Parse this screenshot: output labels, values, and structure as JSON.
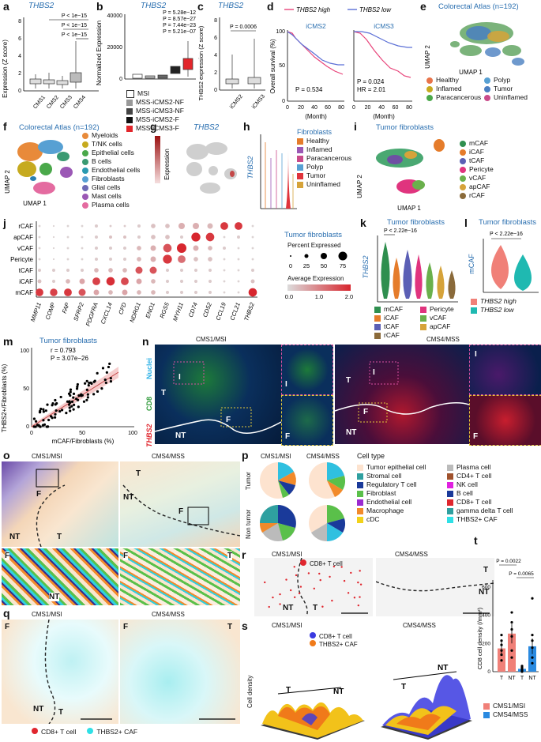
{
  "panels": {
    "a": {
      "label": "a",
      "title": "THBS2",
      "ylabel": "Expression (Z score)",
      "pvals": [
        "P < 1e−15",
        "P < 1e−15",
        "P < 1e−15"
      ],
      "categories": [
        "CMS1",
        "CMS2",
        "CMS3",
        "CMS4"
      ],
      "yticks": [
        "0",
        "2",
        "4",
        "6",
        "8"
      ]
    },
    "b": {
      "label": "b",
      "title": "THBS2",
      "ylabel": "Normalized Expression",
      "pvals": [
        "P = 5.28e−12",
        "P = 8.57e−27",
        "P = 7.44e−23",
        "P = 5.21e−07"
      ],
      "yticks": [
        "0",
        "20000",
        "40000"
      ],
      "legend": [
        "MSI",
        "MSS-iCMS2-NF",
        "MSS-iCMS3-NF",
        "MSS-iCMS2-F",
        "MSS-iCMS3-F"
      ]
    },
    "c": {
      "label": "c",
      "title": "THBS2",
      "ylabel": "THBS2 expression (Z score)",
      "pval": "P = 0.0006",
      "categories": [
        "iCMS2",
        "iCMS3"
      ],
      "yticks": [
        "0",
        "2",
        "4",
        "6",
        "8"
      ]
    },
    "d": {
      "label": "d",
      "legend_high": "THBS2 high",
      "legend_low": "THBS2 low",
      "ylabel": "Overall survival (%)",
      "xlabel": "(Month)",
      "left_title": "iCMS2",
      "right_title": "iCMS3",
      "left_p": "P = 0.534",
      "right_p": "P = 0.024",
      "right_hr": "HR = 2.01",
      "yticks": [
        "0",
        "50",
        "100"
      ],
      "xticks": [
        "0",
        "20",
        "40",
        "60",
        "80"
      ]
    },
    "e": {
      "label": "e",
      "title": "Colorectal Atlas (n=192)",
      "xlabel": "UMAP 1",
      "ylabel": "UMAP 2",
      "legend": [
        "Healthy",
        "Polyp",
        "Inflamed",
        "Tumor",
        "Paracancerous",
        "Uninflamed"
      ]
    },
    "f": {
      "label": "f",
      "title": "Colorectal Atlas (n=192)",
      "xlabel": "UMAP 1",
      "ylabel": "UMAP 2",
      "legend": [
        "Myeloids",
        "T/NK cells",
        "Epithelial cells",
        "B cells",
        "Endothelial cells",
        "Fibroblasts",
        "Glial cells",
        "Mast cells",
        "Plasma cells"
      ]
    },
    "g": {
      "label": "g",
      "title": "THBS2",
      "ylabel": "Expression"
    },
    "h": {
      "label": "h",
      "ylabel": "THBS2",
      "legend_title": "Fibroblasts",
      "legend": [
        "Healthy",
        "Inflamed",
        "Paracancerous",
        "Polyp",
        "Tumor",
        "Uninflamed"
      ]
    },
    "i": {
      "label": "i",
      "title": "Tumor fibroblasts",
      "xlabel": "UMAP 1",
      "ylabel": "UMAP 2",
      "legend": [
        "mCAF",
        "iCAF",
        "tCAF",
        "Pericyte",
        "vCAF",
        "apCAF",
        "rCAF"
      ]
    },
    "j": {
      "label": "j",
      "rows": [
        "rCAF",
        "apCAF",
        "vCAF",
        "Pericyte",
        "tCAF",
        "iCAF",
        "mCAF"
      ],
      "genes": [
        "MMP11",
        "COMP",
        "FAP",
        "SFRP2",
        "PDGFRA",
        "CXCL14",
        "CFD",
        "NDRG1",
        "ENO1",
        "RGS5",
        "MYH11",
        "CD74",
        "CD52",
        "CCL19",
        "CCL21",
        "THBS2"
      ],
      "legend_title": "Tumor fibroblasts",
      "size_title": "Percent Expressed",
      "size_ticks": [
        "0",
        "25",
        "50",
        "75"
      ],
      "color_title": "Average Expression",
      "color_ticks": [
        "0.0",
        "1.0",
        "2.0"
      ]
    },
    "k": {
      "label": "k",
      "title": "Tumor fibroblasts",
      "ylabel": "THBS2",
      "pval": "P < 2.22e−16",
      "legend": [
        "mCAF",
        "Pericyte",
        "iCAF",
        "vCAF",
        "tCAF",
        "apCAF",
        "rCAF"
      ]
    },
    "l": {
      "label": "l",
      "title": "Tumor fibroblasts",
      "ylabel": "mCAF",
      "pval": "P < 2.22e−16",
      "legend": [
        "THBS2 high",
        "THBS2 low"
      ]
    },
    "m": {
      "label": "m",
      "title": "Tumor fibroblasts",
      "r": "r = 0.793",
      "pval": "P = 3.07e−26",
      "xlabel": "mCAF/Fibroblasts (%)",
      "ylabel": "THBS2+/Fibroblasts (%)",
      "xticks": [
        "0",
        "50",
        "100"
      ],
      "yticks": [
        "0",
        "50",
        "100"
      ]
    },
    "n": {
      "label": "n",
      "left_title": "CMS1/MSI",
      "right_title": "CMS4/MSS",
      "channels": [
        "Nuclei",
        "CD8",
        "THBS2"
      ],
      "tags": [
        "I",
        "F",
        "T",
        "NT"
      ]
    },
    "o": {
      "label": "o",
      "left_title": "CMS1/MSI",
      "right_title": "CMS4/MSS",
      "tags": [
        "T",
        "NT",
        "F"
      ]
    },
    "p": {
      "label": "p",
      "col1": "CMS1/MSI",
      "col2": "CMS4/MSS",
      "row1": "Tumor",
      "row2": "Non tumor",
      "legend_title": "Cell type",
      "legend_left": [
        "Tumor epithelial cell",
        "Stromal cell",
        "Regulatory T cell",
        "Fibroblast",
        "Endothelial cell",
        "Macrophage",
        "cDC"
      ],
      "legend_right": [
        "Plasma cell",
        "CD4+ T cell",
        "NK cell",
        "B cell",
        "CD8+ T cell",
        "gamma delta T cell",
        "THBS2+ CAF"
      ]
    },
    "q": {
      "label": "q",
      "left_title": "CMS1/MSI",
      "right_title": "CMS4/MSS",
      "legend": [
        "CD8+ T cell",
        "THBS2+ CAF"
      ],
      "tags": [
        "F",
        "NT",
        "T"
      ]
    },
    "r": {
      "label": "r",
      "left_title": "CMS1/MSI",
      "right_title": "CMS4/MSS",
      "legend": [
        "CD8+ T cell"
      ],
      "tags": [
        "NT",
        "T"
      ]
    },
    "s": {
      "label": "s",
      "left_title": "CMS1/MSI",
      "right_title": "CMS4/MSS",
      "zlabel": "Cell density",
      "legend": [
        "CD8+ T cell",
        "THBS2+ CAF"
      ],
      "tags": [
        "T",
        "NT"
      ]
    },
    "t": {
      "label": "t",
      "ylabel": "CD8 cell density (/mm²)",
      "pvals": [
        "P = 0.0022",
        "P = 0.0065"
      ],
      "yticks": [
        "0",
        "200",
        "400",
        "600"
      ],
      "categories": [
        "T",
        "NT",
        "T",
        "NT"
      ],
      "legend": [
        "CMS1/MSI",
        "CMS4/MSS"
      ]
    }
  },
  "chart_data": [
    {
      "panel": "j",
      "type": "scatter",
      "rows": [
        "rCAF",
        "apCAF",
        "vCAF",
        "Pericyte",
        "tCAF",
        "iCAF",
        "mCAF"
      ],
      "genes": [
        "MMP11",
        "COMP",
        "FAP",
        "SFRP2",
        "PDGFRA",
        "CXCL14",
        "CFD",
        "NDRG1",
        "ENO1",
        "RGS5",
        "MYH11",
        "CD74",
        "CD52",
        "CCL19",
        "CCL21",
        "THBS2"
      ],
      "pct": [
        [
          5,
          3,
          5,
          5,
          10,
          5,
          5,
          10,
          20,
          20,
          40,
          40,
          30,
          60,
          60,
          5
        ],
        [
          5,
          3,
          5,
          5,
          10,
          10,
          10,
          10,
          20,
          20,
          10,
          80,
          70,
          5,
          10,
          5
        ],
        [
          5,
          3,
          5,
          5,
          10,
          10,
          10,
          20,
          30,
          70,
          90,
          30,
          20,
          10,
          5,
          5
        ],
        [
          5,
          3,
          5,
          5,
          10,
          10,
          10,
          20,
          30,
          80,
          60,
          20,
          20,
          5,
          5,
          5
        ],
        [
          10,
          10,
          10,
          10,
          20,
          20,
          20,
          50,
          50,
          10,
          10,
          10,
          10,
          5,
          5,
          10
        ],
        [
          15,
          10,
          20,
          30,
          60,
          70,
          60,
          30,
          20,
          10,
          10,
          10,
          10,
          5,
          5,
          15
        ],
        [
          60,
          55,
          60,
          50,
          30,
          20,
          30,
          20,
          20,
          10,
          10,
          10,
          10,
          5,
          5,
          70
        ]
      ],
      "avg": [
        [
          0.1,
          0.1,
          0.1,
          0.1,
          0.2,
          0.2,
          0.2,
          0.2,
          0.3,
          0.3,
          0.5,
          0.5,
          0.4,
          1.8,
          1.8,
          0.1
        ],
        [
          0.1,
          0.1,
          0.1,
          0.1,
          0.2,
          0.3,
          0.3,
          0.2,
          0.3,
          0.3,
          0.2,
          2.0,
          1.8,
          0.1,
          0.2,
          0.1
        ],
        [
          0.1,
          0.1,
          0.1,
          0.1,
          0.2,
          0.2,
          0.2,
          0.4,
          0.5,
          1.5,
          2.0,
          0.5,
          0.4,
          0.2,
          0.1,
          0.1
        ],
        [
          0.1,
          0.1,
          0.1,
          0.1,
          0.2,
          0.2,
          0.2,
          0.4,
          0.5,
          1.8,
          1.2,
          0.3,
          0.3,
          0.1,
          0.1,
          0.1
        ],
        [
          0.2,
          0.2,
          0.2,
          0.2,
          0.4,
          0.4,
          0.4,
          1.5,
          1.5,
          0.2,
          0.2,
          0.2,
          0.2,
          0.1,
          0.1,
          0.2
        ],
        [
          0.3,
          0.2,
          0.4,
          0.6,
          1.7,
          1.9,
          1.6,
          0.6,
          0.4,
          0.2,
          0.2,
          0.2,
          0.2,
          0.1,
          0.1,
          0.3
        ],
        [
          1.8,
          1.7,
          1.8,
          1.5,
          0.6,
          0.4,
          0.6,
          0.4,
          0.4,
          0.2,
          0.2,
          0.2,
          0.2,
          0.1,
          0.1,
          2.0
        ]
      ]
    },
    {
      "panel": "t",
      "type": "bar",
      "categories": [
        "T",
        "NT",
        "T",
        "NT"
      ],
      "values": [
        165,
        270,
        20,
        180
      ],
      "errors": [
        45,
        70,
        15,
        55
      ],
      "points": [
        [
          80,
          120,
          150,
          190,
          220,
          260
        ],
        [
          100,
          150,
          250,
          300,
          350,
          420
        ],
        [
          0,
          5,
          10,
          20,
          30,
          40
        ],
        [
          60,
          100,
          170,
          220,
          260,
          520
        ]
      ],
      "ylim": [
        0,
        650
      ]
    },
    {
      "panel": "m",
      "type": "scatter",
      "r": 0.793,
      "xlim": [
        0,
        100
      ],
      "ylim": [
        0,
        100
      ]
    },
    {
      "panel": "p",
      "type": "pie",
      "col": [
        "CMS1/MSI",
        "CMS4/MSS"
      ],
      "rows": [
        "Tumor",
        "Non tumor"
      ]
    }
  ],
  "colors": {
    "accent": "#2a6fb0",
    "high": "#e8447a",
    "low": "#5b6fd6"
  }
}
